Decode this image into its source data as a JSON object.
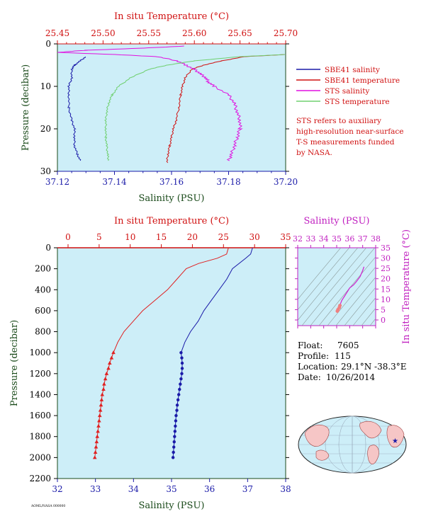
{
  "colors": {
    "red": "#d01010",
    "blue": "#1a1aa8",
    "magenta": "#e010e0",
    "green": "#70d070",
    "panel_bg": "#cdeef8",
    "dark_green": "#1a4a1a"
  },
  "top": {
    "x_top_title": "In situ Temperature (°C)",
    "x_bottom_title": "Salinity (PSU)",
    "y_title": "Pressure (decibar)",
    "temp_ticks": [
      "25.45",
      "25.50",
      "25.55",
      "25.60",
      "25.65",
      "25.70"
    ],
    "sal_ticks": [
      "37.12",
      "37.14",
      "37.16",
      "37.18",
      "37.20"
    ],
    "pres_ticks": [
      "0",
      "10",
      "20",
      "30"
    ],
    "legend": [
      {
        "label": "SBE41 salinity",
        "color": "#1a1aa8"
      },
      {
        "label": "SBE41 temperature",
        "color": "#d01010"
      },
      {
        "label": "STS salinity",
        "color": "#e010e0"
      },
      {
        "label": "STS temperature",
        "color": "#70d070"
      }
    ],
    "note": [
      "STS refers to auxiliary",
      "high-resolution near-surface",
      "T-S measurements funded",
      "by NASA."
    ]
  },
  "bottom": {
    "x_top_title": "In situ Temperature (°C)",
    "x_bottom_title": "Salinity (PSU)",
    "y_title": "Pressure (decibar)",
    "temp_ticks": [
      "0",
      "5",
      "10",
      "15",
      "20",
      "25",
      "30",
      "35"
    ],
    "sal_ticks": [
      "32",
      "33",
      "34",
      "35",
      "36",
      "37",
      "38"
    ],
    "pres_ticks": [
      "0",
      "200",
      "400",
      "600",
      "800",
      "1000",
      "1200",
      "1400",
      "1600",
      "1800",
      "2000",
      "2200"
    ]
  },
  "ts": {
    "top_title": "Salinity (PSU)",
    "y_title": "In situ Temperature (°C)",
    "sal_ticks": [
      "32",
      "33",
      "34",
      "35",
      "36",
      "37",
      "38"
    ],
    "temp_ticks": [
      "0",
      "5",
      "10",
      "15",
      "20",
      "25",
      "30",
      "35"
    ]
  },
  "info": {
    "float_label": "Float:",
    "float_value": "7605",
    "profile_label": "Profile:",
    "profile_value": "115",
    "location_label": "Location:",
    "location_value": "29.1°N  -38.3°E",
    "date_label": "Date:",
    "date_value": "10/26/2014"
  },
  "footer_code": "AOML/NASA 000000",
  "chart_data": [
    {
      "type": "line",
      "title": "",
      "xlabel_top": "In situ Temperature (°C)",
      "xlabel_bottom": "Salinity (PSU)",
      "ylabel": "Pressure (decibar)",
      "xlim_temp": [
        25.45,
        25.7
      ],
      "xlim_sal": [
        37.12,
        37.2
      ],
      "ylim": [
        30,
        0
      ],
      "grid": false,
      "legend_position": "right",
      "series": [
        {
          "name": "SBE41 salinity",
          "axis": "salinity",
          "p": [
            3,
            4,
            5,
            6,
            8,
            10,
            12,
            15,
            18,
            20,
            22,
            24,
            26,
            27.5
          ],
          "values": [
            37.13,
            37.128,
            37.126,
            37.125,
            37.125,
            37.124,
            37.124,
            37.124,
            37.125,
            37.126,
            37.126,
            37.126,
            37.127,
            37.128
          ]
        },
        {
          "name": "SBE41 temperature",
          "axis": "temperature",
          "p": [
            2.5,
            3,
            4,
            5,
            6,
            8,
            10,
            12,
            15,
            18,
            20,
            22,
            24,
            26,
            28
          ],
          "values": [
            25.7,
            25.655,
            25.63,
            25.61,
            25.597,
            25.59,
            25.587,
            25.585,
            25.583,
            25.58,
            25.577,
            25.575,
            25.573,
            25.571,
            25.57
          ]
        },
        {
          "name": "STS salinity",
          "axis": "salinity",
          "p": [
            0.5,
            1,
            1.5,
            2,
            2.5,
            3,
            4,
            5,
            6,
            7,
            8,
            9,
            10,
            12,
            14,
            16,
            18,
            20,
            22,
            24,
            26,
            27.5
          ],
          "values": [
            37.165,
            37.15,
            37.13,
            37.12,
            37.14,
            37.155,
            37.162,
            37.165,
            37.168,
            37.17,
            37.172,
            37.173,
            37.175,
            37.18,
            37.182,
            37.183,
            37.184,
            37.184,
            37.183,
            37.182,
            37.181,
            37.18
          ]
        },
        {
          "name": "STS temperature",
          "axis": "temperature",
          "p": [
            2.5,
            3,
            4,
            5,
            6,
            8,
            10,
            12,
            14,
            16,
            18,
            20,
            22,
            24,
            26,
            27.5
          ],
          "values": [
            25.7,
            25.65,
            25.6,
            25.57,
            25.55,
            25.53,
            25.517,
            25.51,
            25.506,
            25.504,
            25.503,
            25.503,
            25.503,
            25.504,
            25.505,
            25.506
          ]
        }
      ]
    },
    {
      "type": "line",
      "title": "",
      "xlabel_top": "In situ Temperature (°C)",
      "xlabel_bottom": "Salinity (PSU)",
      "ylabel": "Pressure (decibar)",
      "xlim_temp": [
        0,
        35
      ],
      "xlim_sal": [
        32,
        38
      ],
      "ylim": [
        2200,
        0
      ],
      "grid": false,
      "series": [
        {
          "name": "",
          "axis": "temperature",
          "p": [
            0,
            60,
            100,
            150,
            200,
            300,
            400,
            500,
            600,
            700,
            800,
            900,
            1000
          ],
          "values": [
            25.8,
            25.5,
            24.0,
            21.0,
            19.0,
            17.5,
            16.0,
            14.0,
            12.0,
            10.5,
            9.0,
            8.0,
            7.3
          ]
        },
        {
          "name": "",
          "axis": "salinity",
          "p": [
            0,
            60,
            100,
            200,
            300,
            400,
            500,
            600,
            700,
            800,
            900,
            1000
          ],
          "values": [
            37.13,
            37.08,
            36.95,
            36.6,
            36.45,
            36.25,
            36.05,
            35.85,
            35.7,
            35.5,
            35.35,
            35.25
          ],
          "marked": false
        },
        {
          "name": "",
          "axis": "temperature",
          "marked": true,
          "p": [
            1000,
            1050,
            1100,
            1150,
            1200,
            1250,
            1300,
            1350,
            1400,
            1450,
            1500,
            1550,
            1600,
            1650,
            1700,
            1750,
            1800,
            1850,
            1900,
            1950,
            2000
          ],
          "values": [
            7.3,
            7.0,
            6.7,
            6.5,
            6.2,
            6.0,
            5.8,
            5.7,
            5.5,
            5.4,
            5.3,
            5.2,
            5.1,
            5.0,
            4.9,
            4.8,
            4.7,
            4.6,
            4.5,
            4.4,
            4.3
          ]
        },
        {
          "name": "",
          "axis": "salinity",
          "marked": true,
          "p": [
            1000,
            1050,
            1100,
            1150,
            1200,
            1250,
            1300,
            1350,
            1400,
            1450,
            1500,
            1550,
            1600,
            1650,
            1700,
            1750,
            1800,
            1850,
            1900,
            1950,
            2000
          ],
          "values": [
            35.25,
            35.27,
            35.28,
            35.28,
            35.27,
            35.25,
            35.23,
            35.21,
            35.19,
            35.17,
            35.15,
            35.14,
            35.12,
            35.11,
            35.1,
            35.09,
            35.08,
            35.07,
            35.06,
            35.05,
            35.04
          ]
        }
      ]
    },
    {
      "type": "scatter",
      "title": "",
      "xlabel": "Salinity (PSU)",
      "ylabel": "In situ Temperature (°C)",
      "xlim": [
        32,
        38
      ],
      "ylim": [
        0,
        35
      ],
      "series": [
        {
          "name": "",
          "x": [
            37.1,
            37.0,
            36.8,
            36.5,
            36.3,
            36.0,
            35.8,
            35.6,
            35.4,
            35.3,
            35.25,
            35.2,
            35.1,
            35.05
          ],
          "y": [
            25.8,
            24.0,
            21.0,
            18.5,
            17.0,
            15.5,
            13.5,
            11.5,
            9.5,
            8.0,
            7.0,
            6.0,
            5.0,
            4.3
          ]
        }
      ]
    }
  ]
}
